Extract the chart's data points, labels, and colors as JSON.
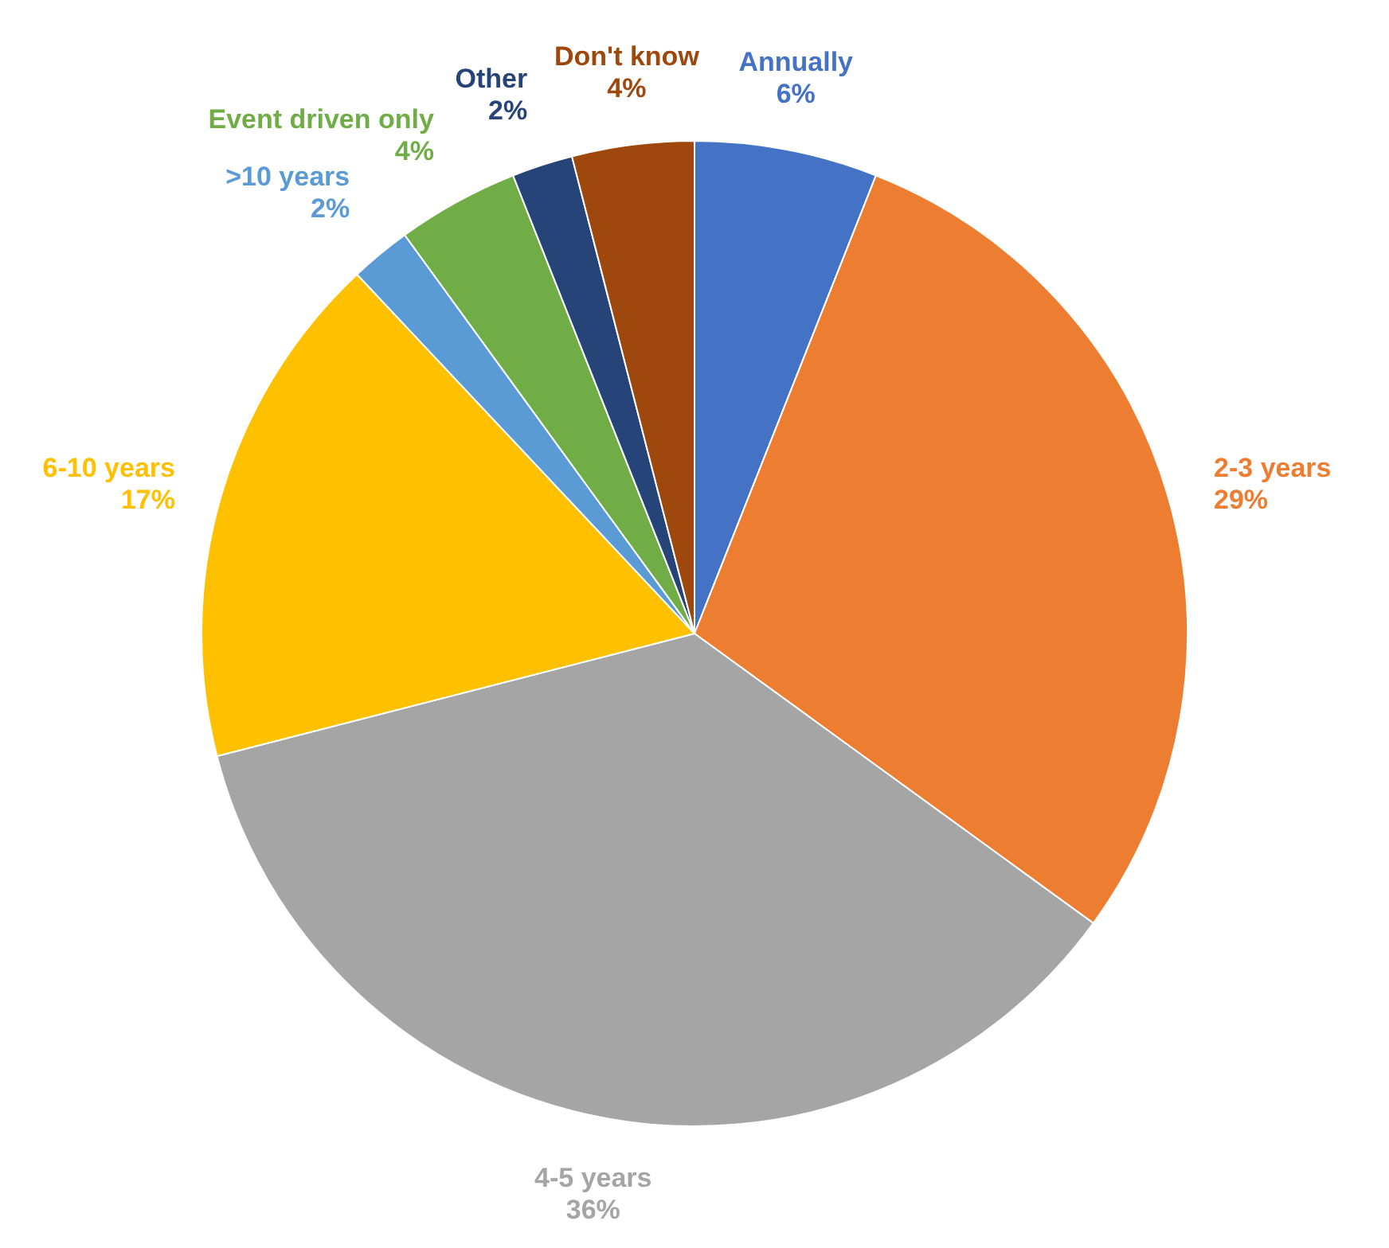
{
  "chart_data": {
    "type": "pie",
    "categories": [
      "Annually",
      "2-3 years",
      "4-5 years",
      "6-10 years",
      ">10 years",
      "Event driven only",
      "Other",
      "Don't know"
    ],
    "values": [
      6,
      29,
      36,
      17,
      2,
      4,
      2,
      4
    ],
    "value_labels": [
      "6%",
      "29%",
      "36%",
      "17%",
      "2%",
      "4%",
      "2%",
      "4%"
    ],
    "colors": [
      "#4472c4",
      "#ed7d31",
      "#a5a5a5",
      "#ffc000",
      "#5b9bd5",
      "#70ad47",
      "#264478",
      "#9e480e"
    ],
    "legend": false
  }
}
